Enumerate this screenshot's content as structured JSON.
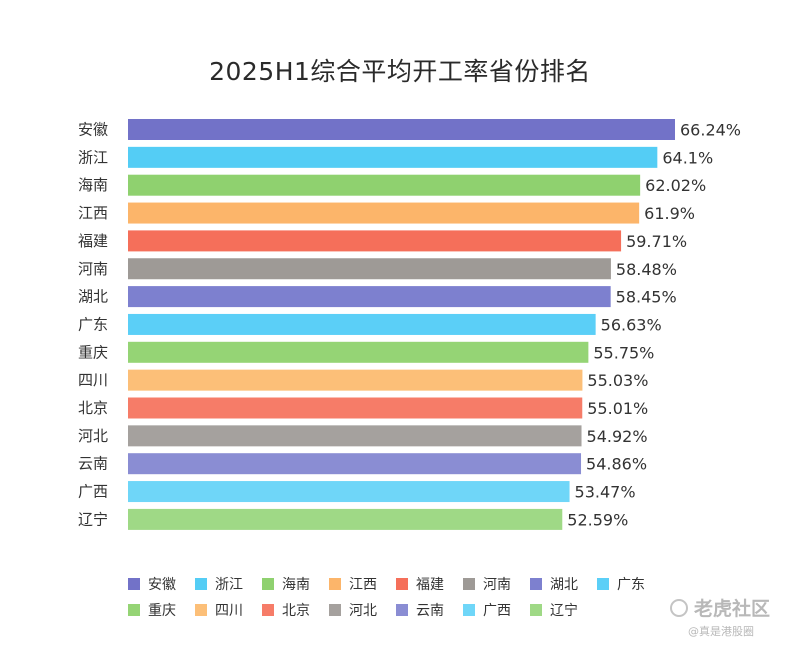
{
  "chart_data": {
    "type": "bar",
    "orientation": "horizontal",
    "title": "2025H1综合平均开工率省份排名",
    "categories": [
      "安徽",
      "浙江",
      "海南",
      "江西",
      "福建",
      "河南",
      "湖北",
      "广东",
      "重庆",
      "四川",
      "北京",
      "河北",
      "云南",
      "广西",
      "辽宁"
    ],
    "values": [
      66.24,
      64.1,
      62.02,
      61.9,
      59.71,
      58.48,
      58.45,
      56.63,
      55.75,
      55.03,
      55.01,
      54.92,
      54.86,
      53.47,
      52.59
    ],
    "value_labels": [
      "66.24%",
      "64.1%",
      "62.02%",
      "61.9%",
      "59.71%",
      "58.48%",
      "58.45%",
      "56.63%",
      "55.75%",
      "55.03%",
      "55.01%",
      "54.92%",
      "54.86%",
      "53.47%",
      "52.59%"
    ],
    "colors": [
      "#7272c8",
      "#54cdf5",
      "#8fd16f",
      "#fcb56a",
      "#f56f5a",
      "#9e9a96",
      "#7d80cf",
      "#5bcff7",
      "#95d475",
      "#fcbf78",
      "#f67c68",
      "#a5a19e",
      "#8a8dd3",
      "#6fd6f8",
      "#9fd986"
    ],
    "xlim": [
      0,
      66.24
    ],
    "grid": false,
    "legend": "bottom",
    "xlabel": "",
    "ylabel": ""
  },
  "watermark": {
    "brand": "老虎社区",
    "handle": "@真是港股圈"
  }
}
